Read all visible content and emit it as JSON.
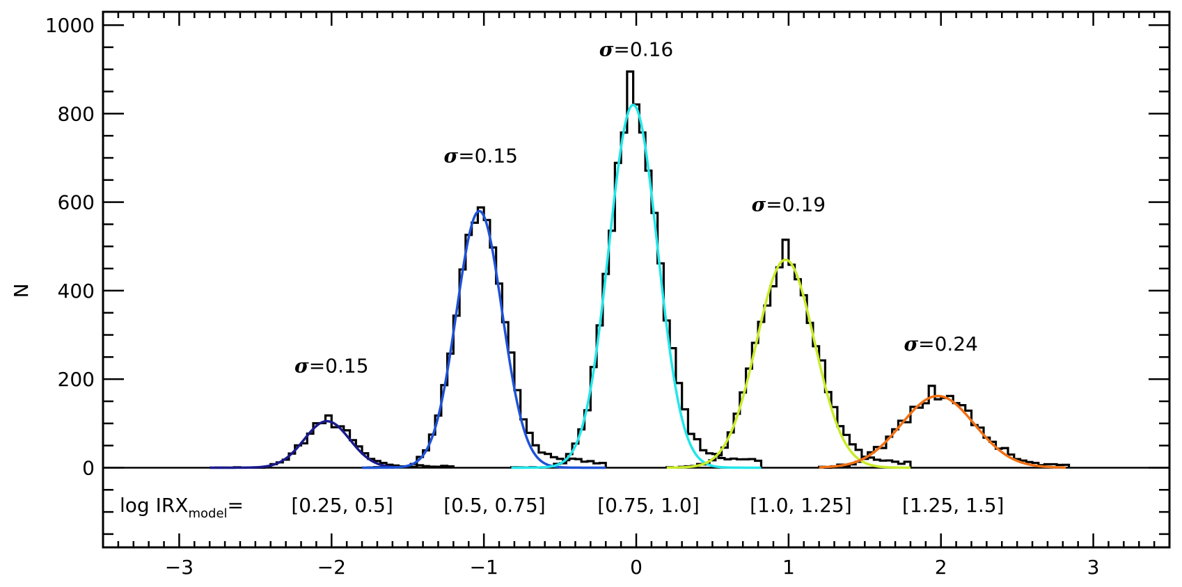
{
  "chart_data": {
    "type": "histogram-with-gaussian-fits",
    "title": "",
    "xlabel": "",
    "ylabel": "N",
    "xlim": [
      -3.5,
      3.5
    ],
    "ylim": [
      -180,
      1030
    ],
    "x_ticks": [
      -3,
      -2,
      -1,
      0,
      1,
      2,
      3
    ],
    "x_tick_labels": [
      "−3",
      "−2",
      "−1",
      "0",
      "1",
      "2",
      "3"
    ],
    "y_ticks": [
      0,
      200,
      400,
      600,
      800,
      1000
    ],
    "y_tick_labels": [
      "0",
      "200",
      "400",
      "600",
      "800",
      "1000"
    ],
    "x_minor_step": 0.1,
    "y_minor_step": 50,
    "legend_prefix": {
      "main": "log  IRX",
      "sub": "model",
      "suffix": "="
    },
    "histogram_bin_width": 0.04,
    "series": [
      {
        "bin_label": "[0.25,  0.5]",
        "sigma_label": "0.15",
        "color": "#1a1a8c",
        "center": -2.03,
        "peak": 105,
        "sigma": 0.15,
        "fit_range": [
          -2.8,
          -1.55
        ],
        "hist_range": [
          -2.8,
          -1.2
        ],
        "hist_peak": 118,
        "tail_amp": 0.12,
        "tail_scale": 0.5,
        "label_pos": [
          -2.0,
          215
        ]
      },
      {
        "bin_label": "[0.5,  0.75]",
        "sigma_label": "0.15",
        "color": "#1e52d6",
        "center": -1.03,
        "peak": 580,
        "sigma": 0.15,
        "fit_range": [
          -1.8,
          -0.2
        ],
        "hist_range": [
          -1.8,
          -0.2
        ],
        "hist_peak": 588,
        "tail_amp": 0.12,
        "tail_scale": 0.45,
        "label_pos": [
          -1.02,
          690
        ]
      },
      {
        "bin_label": "[0.75,  1.0]",
        "sigma_label": "0.16",
        "color": "#22e6ea",
        "center": -0.02,
        "peak": 820,
        "sigma": 0.16,
        "fit_range": [
          -0.82,
          0.82
        ],
        "hist_range": [
          -0.82,
          0.82
        ],
        "hist_peak": 895,
        "tail_amp": 0.11,
        "tail_scale": 0.45,
        "label_pos": [
          0.0,
          930
        ]
      },
      {
        "bin_label": "[1.0,  1.25]",
        "sigma_label": "0.19",
        "color": "#c8ec2a",
        "center": 0.98,
        "peak": 470,
        "sigma": 0.19,
        "fit_range": [
          0.2,
          1.8
        ],
        "hist_range": [
          0.2,
          1.8
        ],
        "hist_peak": 515,
        "tail_amp": 0.12,
        "tail_scale": 0.5,
        "label_pos": [
          1.0,
          580
        ]
      },
      {
        "bin_label": "[1.25,  1.5]",
        "sigma_label": "0.24",
        "color": "#f07014",
        "center": 1.98,
        "peak": 162,
        "sigma": 0.24,
        "fit_range": [
          1.2,
          2.82
        ],
        "hist_range": [
          1.2,
          2.82
        ],
        "hist_peak": 185,
        "tail_amp": 0.15,
        "tail_scale": 0.5,
        "label_pos": [
          2.0,
          265
        ]
      }
    ]
  }
}
